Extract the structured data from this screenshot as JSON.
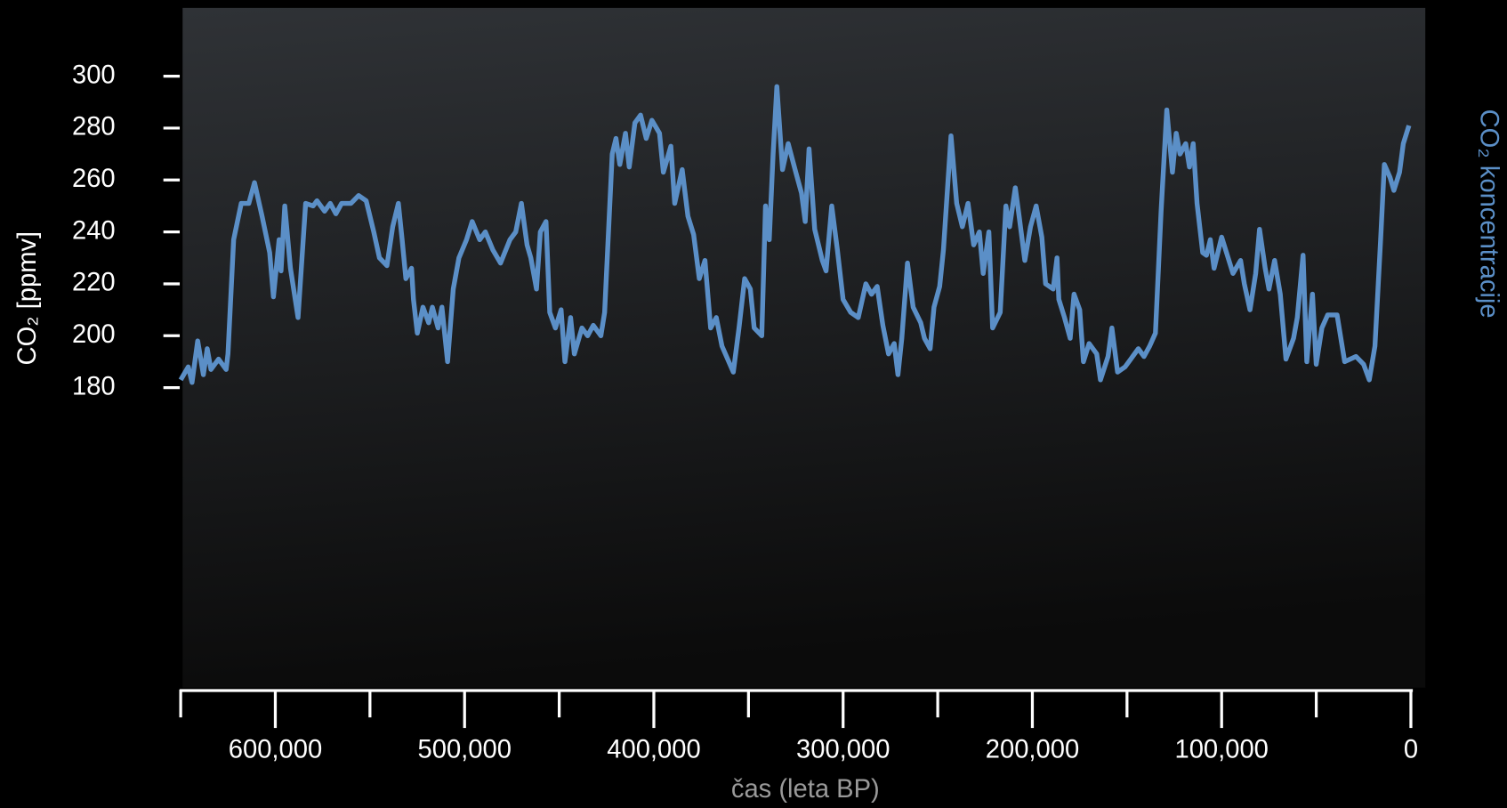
{
  "chart_data": {
    "type": "line",
    "y_label": "CO₂ [ppmv]",
    "x_label": "čas (leta BP)",
    "x": [
      650000,
      646000,
      644000,
      641000,
      638000,
      636000,
      634000,
      630000,
      626000,
      625000,
      622000,
      618000,
      614000,
      611000,
      607000,
      603000,
      601000,
      598000,
      597000,
      595000,
      592000,
      588000,
      584000,
      580000,
      578000,
      574000,
      571000,
      568000,
      565000,
      560000,
      556000,
      552000,
      548000,
      545000,
      541000,
      538000,
      535000,
      533000,
      531000,
      528000,
      527000,
      525000,
      522000,
      519000,
      517000,
      514000,
      512000,
      509000,
      506000,
      503000,
      499000,
      496000,
      492000,
      489000,
      485000,
      481000,
      476000,
      473000,
      470000,
      467000,
      465000,
      462000,
      460000,
      457000,
      455000,
      452000,
      449000,
      447000,
      444000,
      442000,
      438000,
      435000,
      432000,
      428000,
      426000,
      422000,
      420000,
      418000,
      415000,
      413000,
      410000,
      407000,
      404000,
      401000,
      397000,
      395000,
      391000,
      389000,
      385000,
      382000,
      379000,
      376000,
      373000,
      370000,
      367000,
      364000,
      358000,
      355000,
      352000,
      349000,
      347000,
      343000,
      341000,
      339000,
      337000,
      335000,
      332000,
      329000,
      325000,
      322000,
      320000,
      318000,
      315000,
      311000,
      309000,
      306000,
      303000,
      300000,
      296000,
      292000,
      288000,
      285000,
      282000,
      279000,
      276000,
      273000,
      271000,
      269000,
      266000,
      263000,
      259000,
      257000,
      254000,
      252000,
      249000,
      247000,
      243000,
      240000,
      237000,
      234000,
      231000,
      228000,
      226000,
      223000,
      221000,
      217000,
      214000,
      212000,
      209000,
      207000,
      204000,
      201000,
      198000,
      195000,
      193000,
      189000,
      187000,
      186000,
      183000,
      180000,
      178000,
      175000,
      173000,
      170000,
      166000,
      164000,
      160000,
      158000,
      155000,
      151000,
      147000,
      144000,
      141000,
      138000,
      135000,
      132000,
      129000,
      126000,
      124000,
      122000,
      119000,
      117000,
      115000,
      113000,
      110000,
      108000,
      106000,
      104000,
      100000,
      97000,
      94000,
      90000,
      88000,
      85000,
      82000,
      80000,
      77000,
      75000,
      72000,
      69000,
      66000,
      62000,
      60000,
      57000,
      55000,
      52000,
      50000,
      47000,
      44000,
      39000,
      35000,
      29000,
      25000,
      22000,
      19000,
      16000,
      14000,
      11000,
      9000,
      6000,
      4000,
      1000
    ],
    "series": [
      {
        "name": "CO₂ koncentracije",
        "color": "#5b8fc7",
        "values": [
          183,
          188,
          182,
          198,
          185,
          195,
          187,
          191,
          187,
          193,
          237,
          251,
          251,
          259,
          246,
          232,
          215,
          237,
          225,
          250,
          226,
          207,
          251,
          250,
          252,
          248,
          251,
          247,
          251,
          251,
          254,
          252,
          240,
          230,
          227,
          242,
          251,
          237,
          222,
          226,
          214,
          201,
          211,
          205,
          211,
          203,
          211,
          190,
          218,
          230,
          237,
          244,
          237,
          240,
          233,
          228,
          237,
          240,
          251,
          235,
          230,
          218,
          240,
          244,
          209,
          203,
          210,
          190,
          207,
          193,
          203,
          200,
          204,
          200,
          209,
          270,
          276,
          266,
          278,
          265,
          282,
          285,
          276,
          283,
          278,
          263,
          273,
          251,
          264,
          246,
          239,
          222,
          229,
          203,
          207,
          196,
          186,
          203,
          222,
          218,
          203,
          200,
          250,
          237,
          270,
          296,
          264,
          274,
          263,
          255,
          244,
          272,
          241,
          229,
          225,
          250,
          233,
          214,
          209,
          207,
          220,
          216,
          219,
          204,
          193,
          197,
          185,
          199,
          228,
          211,
          205,
          199,
          195,
          211,
          219,
          233,
          277,
          251,
          242,
          251,
          235,
          240,
          224,
          240,
          203,
          209,
          250,
          242,
          257,
          246,
          229,
          242,
          250,
          238,
          220,
          218,
          230,
          214,
          207,
          199,
          216,
          210,
          190,
          197,
          193,
          183,
          192,
          203,
          186,
          188,
          192,
          195,
          192,
          196,
          201,
          248,
          287,
          263,
          278,
          270,
          274,
          265,
          274,
          251,
          232,
          231,
          237,
          226,
          238,
          231,
          224,
          229,
          220,
          210,
          224,
          241,
          226,
          218,
          229,
          216,
          191,
          199,
          207,
          231,
          190,
          216,
          189,
          203,
          208,
          208,
          190,
          192,
          189,
          183,
          196,
          237,
          266,
          261,
          256,
          263,
          274,
          281
        ]
      }
    ],
    "xlim": [
      650000,
      0
    ],
    "xticks": [
      {
        "value": 600000,
        "label": "600,000"
      },
      {
        "value": 500000,
        "label": "500,000"
      },
      {
        "value": 400000,
        "label": "400,000"
      },
      {
        "value": 300000,
        "label": "300,000"
      },
      {
        "value": 200000,
        "label": "200,000"
      },
      {
        "value": 100000,
        "label": "100,000"
      },
      0
    ],
    "xminorticks": [
      650000,
      550000,
      450000,
      350000,
      250000,
      150000,
      50000
    ],
    "ylim": [
      65,
      320
    ],
    "yticks": [
      180,
      200,
      220,
      240,
      260,
      280,
      300
    ]
  }
}
